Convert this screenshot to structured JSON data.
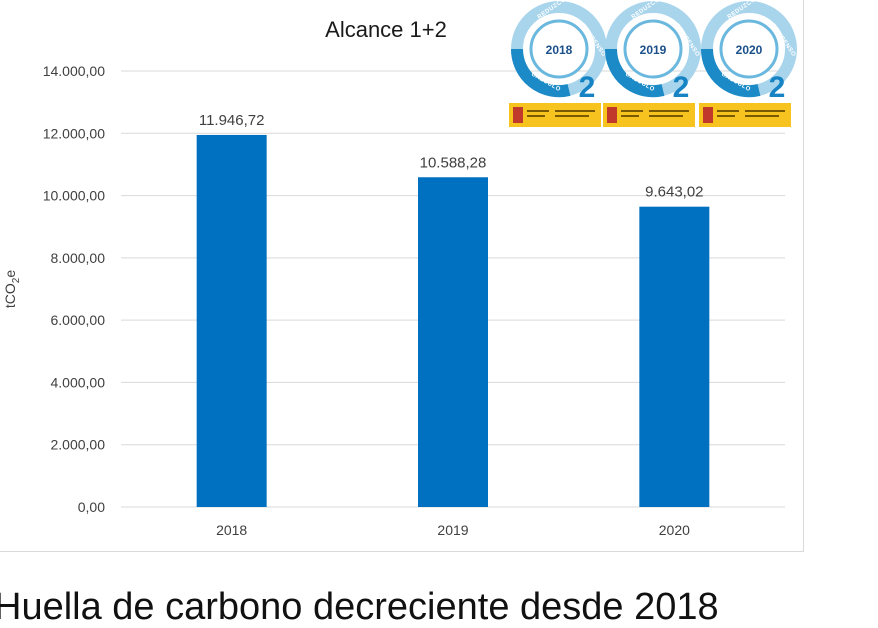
{
  "chart_data": {
    "type": "bar",
    "title": "Alcance 1+2",
    "ylabel": "tCO2e",
    "xlabel": "",
    "categories": [
      "2018",
      "2019",
      "2020"
    ],
    "values": [
      11946.72,
      10588.28,
      9643.02
    ],
    "data_labels": [
      "11.946,72",
      "10.588,28",
      "9.643,02"
    ],
    "ylim": [
      0,
      14000
    ],
    "yticks": [
      0,
      2000,
      4000,
      6000,
      8000,
      10000,
      12000,
      14000
    ],
    "ytick_labels": [
      "0,00",
      "2.000,00",
      "4.000,00",
      "6.000,00",
      "8.000,00",
      "10.000,00",
      "12.000,00",
      "14.000,00"
    ],
    "grid": true,
    "legend": "none",
    "bar_color": "#0070c0"
  },
  "logos": {
    "years": [
      "2018",
      "2019",
      "2020"
    ],
    "ring_text_calc": "CALCULO",
    "ring_text_reduzco": "REDUZCO",
    "ring_text_compenso": "COMPENSO",
    "digit": "2"
  },
  "caption": "Huella de carbono decreciente desde 2018"
}
